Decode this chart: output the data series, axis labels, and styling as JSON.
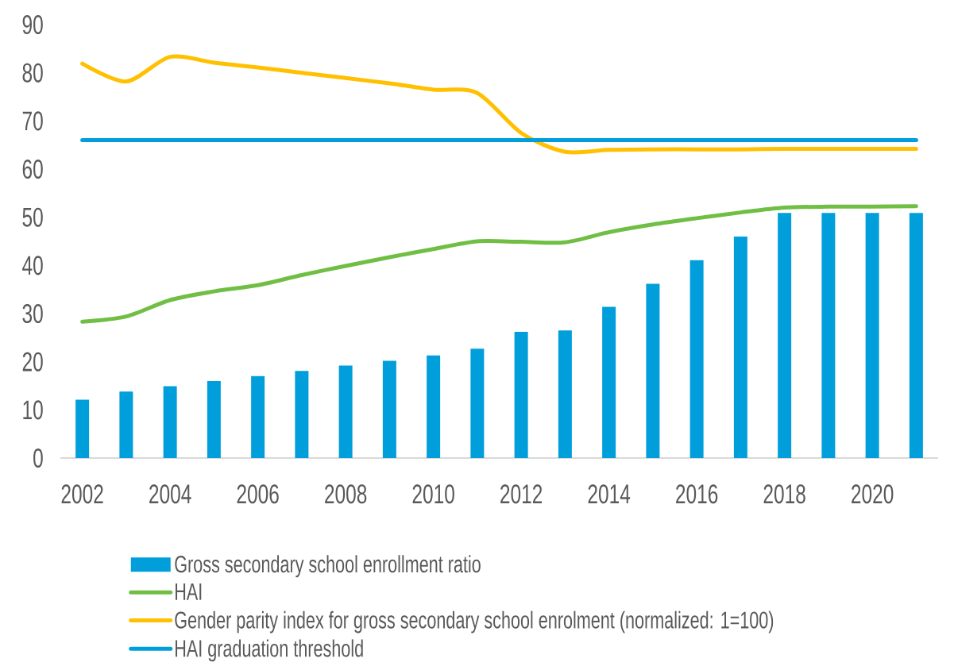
{
  "chart_data": {
    "type": "bar",
    "legend": "bottom",
    "categories": [
      "2002",
      null,
      "2004",
      null,
      "2006",
      null,
      "2008",
      null,
      "2010",
      null,
      "2012",
      null,
      "2014",
      null,
      "2016",
      null,
      "2018",
      null,
      "2020",
      null
    ],
    "ylim": [
      0,
      90
    ],
    "yticks": [
      0,
      10,
      20,
      30,
      40,
      50,
      60,
      70,
      80,
      90
    ],
    "series": [
      {
        "name": "Gross secondary school enrollment ratio",
        "color": "#009fdb",
        "values": [
          12.1,
          13.8,
          14.9,
          16.0,
          17.0,
          18.1,
          19.2,
          20.2,
          21.3,
          22.7,
          26.2,
          26.5,
          31.4,
          36.2,
          41.1,
          46.0,
          50.9,
          50.9,
          50.9,
          50.9
        ]
      },
      {
        "name": "HAI",
        "type": "line",
        "color": "#70bf44",
        "values": [
          28.3,
          29.4,
          32.8,
          34.6,
          35.9,
          38.0,
          39.9,
          41.7,
          43.4,
          45.0,
          44.9,
          44.8,
          46.9,
          48.5,
          49.8,
          51.0,
          52.0,
          52.2,
          52.2,
          52.3
        ]
      },
      {
        "name": "Gender parity index for gross secondary school enrolment (normalized: 1=100)",
        "type": "line",
        "color": "#ffc000",
        "values": [
          81.9,
          78.2,
          83.3,
          82.1,
          81.1,
          80.0,
          78.9,
          77.8,
          76.5,
          75.8,
          67.5,
          63.6,
          64.0,
          64.1,
          64.1,
          64.1,
          64.2,
          64.2,
          64.2,
          64.2
        ]
      }
    ],
    "ref_lines": [
      {
        "axis": "y",
        "value": 66,
        "label": "HAI graduation threshold",
        "color": "#009fdb"
      }
    ]
  }
}
